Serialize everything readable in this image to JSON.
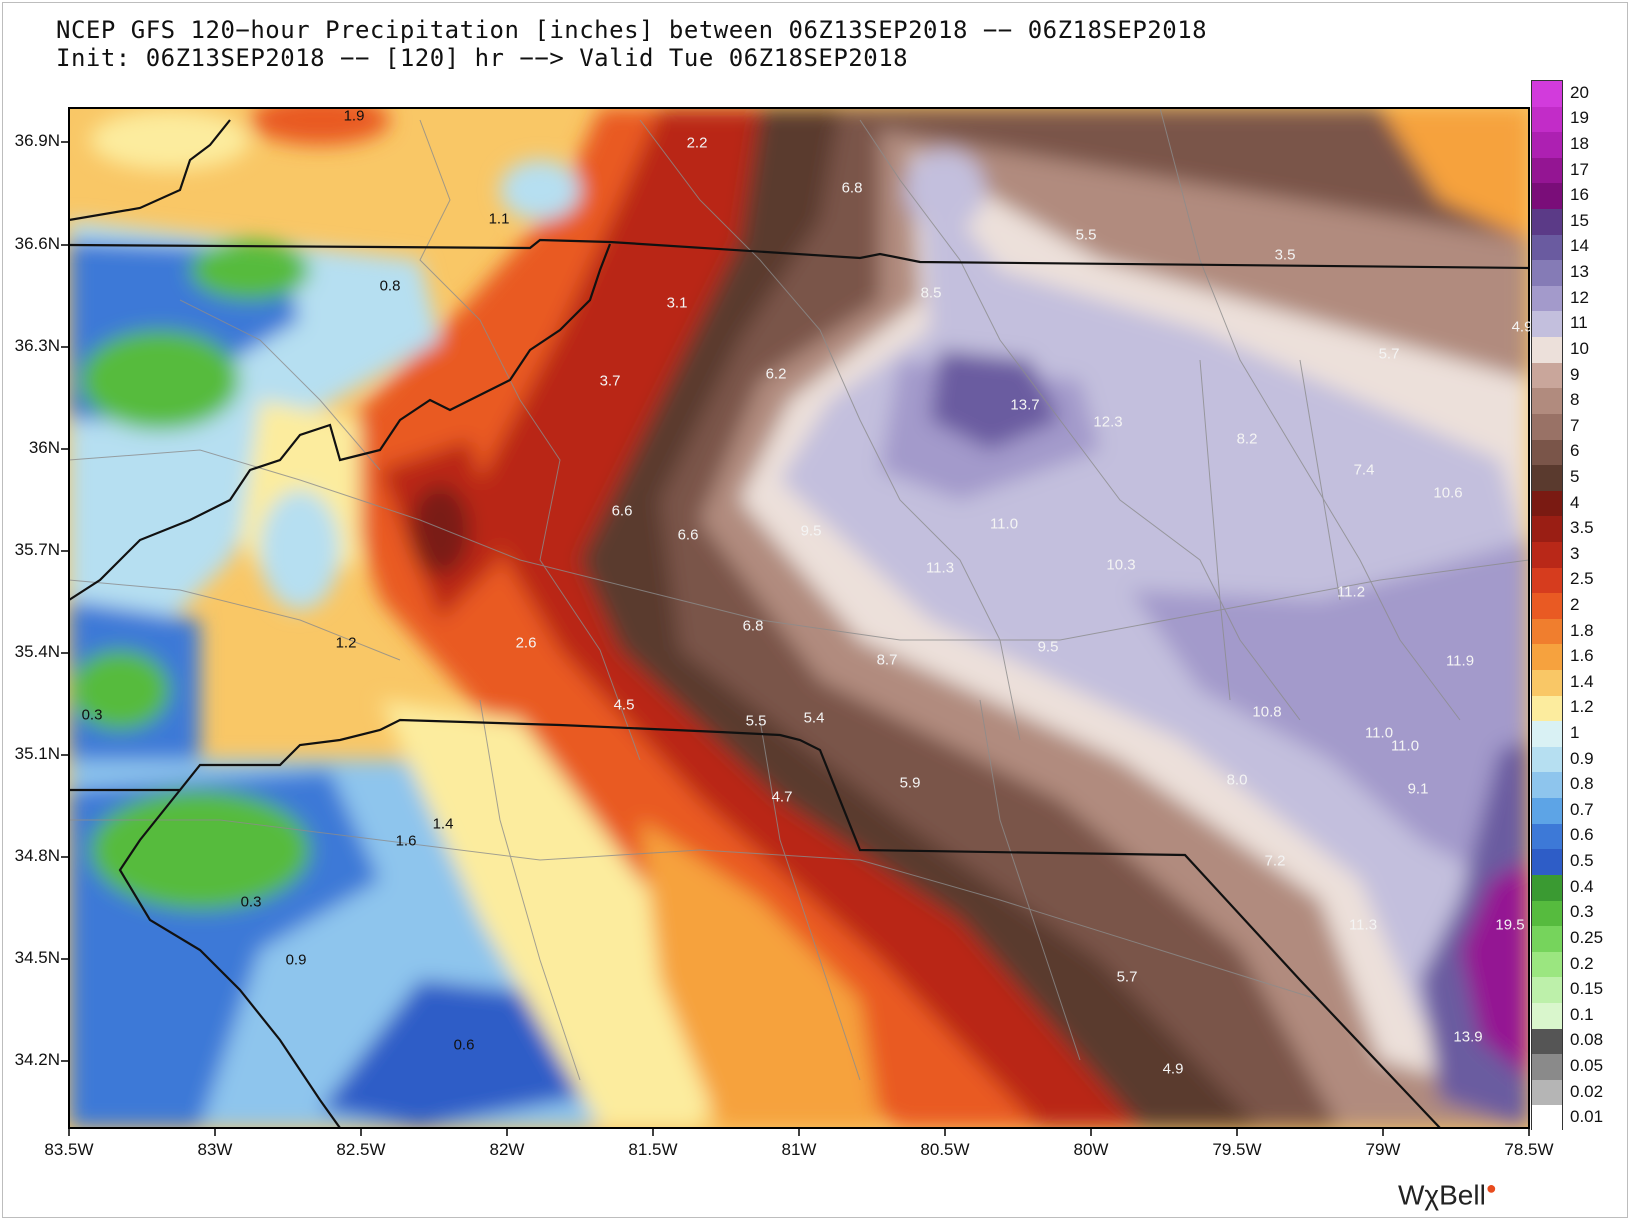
{
  "title_line1": "NCEP GFS 120−hour Precipitation [inches] between 06Z13SEP2018 −− 06Z18SEP2018",
  "title_line2": "Init: 06Z13SEP2018 −− [120] hr −−> Valid Tue 06Z18SEP2018",
  "latitude_labels": [
    "36.9N",
    "36.6N",
    "36.3N",
    "36N",
    "35.7N",
    "35.4N",
    "35.1N",
    "34.8N",
    "34.5N",
    "34.2N"
  ],
  "longitude_labels": [
    "83.5W",
    "83W",
    "82.5W",
    "82W",
    "81.5W",
    "81W",
    "80.5W",
    "80W",
    "79.5W",
    "79W",
    "78.5W"
  ],
  "colorbar": {
    "labels": [
      "20",
      "19",
      "18",
      "17",
      "16",
      "15",
      "14",
      "13",
      "12",
      "11",
      "10",
      "9",
      "8",
      "7",
      "6",
      "5",
      "4",
      "3.5",
      "3",
      "2.5",
      "2",
      "1.8",
      "1.6",
      "1.4",
      "1.2",
      "1",
      "0.9",
      "0.8",
      "0.7",
      "0.6",
      "0.5",
      "0.4",
      "0.3",
      "0.25",
      "0.2",
      "0.15",
      "0.1",
      "0.08",
      "0.05",
      "0.02",
      "0.01"
    ],
    "colors": [
      "#d23bdc",
      "#c22cc8",
      "#ad20b2",
      "#941593",
      "#7a0d79",
      "#5b3a87",
      "#6a5ba0",
      "#857bb6",
      "#a39acb",
      "#c3bfdd",
      "#ece0da",
      "#c9a69b",
      "#b18b7e",
      "#997266",
      "#7a5549",
      "#5a3a2e",
      "#7a1a12",
      "#9a1e14",
      "#b92818",
      "#d63c1e",
      "#e95a23",
      "#f07e2e",
      "#f6a23e",
      "#f9c766",
      "#fcec9e",
      "#d9f1f4",
      "#b6dff1",
      "#8ec5ed",
      "#5da4e6",
      "#3d79d7",
      "#2e5dc7",
      "#3a9a32",
      "#56bb3e",
      "#76d45c",
      "#9be680",
      "#bdf0aa",
      "#d9f6cc",
      "#555555",
      "#8a8a8a",
      "#b5b5b5",
      "#ffffff"
    ]
  },
  "point_values": [
    {
      "label": "1.9",
      "tone": "dark"
    },
    {
      "label": "2.2",
      "tone": "light"
    },
    {
      "label": "6.8",
      "tone": "light"
    },
    {
      "label": "5.5",
      "tone": "light"
    },
    {
      "label": "3.5",
      "tone": "light"
    },
    {
      "label": "4.9",
      "tone": "light"
    },
    {
      "label": "1.1",
      "tone": "dark"
    },
    {
      "label": "0.8",
      "tone": "dark"
    },
    {
      "label": "3.1",
      "tone": "light"
    },
    {
      "label": "8.5",
      "tone": "light"
    },
    {
      "label": "6.2",
      "tone": "light"
    },
    {
      "label": "3.7",
      "tone": "light"
    },
    {
      "label": "13.7",
      "tone": "light"
    },
    {
      "label": "12.3",
      "tone": "light"
    },
    {
      "label": "5.7",
      "tone": "light"
    },
    {
      "label": "8.2",
      "tone": "light"
    },
    {
      "label": "7.4",
      "tone": "light"
    },
    {
      "label": "10.6",
      "tone": "light"
    },
    {
      "label": "6.6",
      "tone": "light"
    },
    {
      "label": "6.6",
      "tone": "light"
    },
    {
      "label": "9.5",
      "tone": "light"
    },
    {
      "label": "11.0",
      "tone": "light"
    },
    {
      "label": "11.3",
      "tone": "light"
    },
    {
      "label": "10.3",
      "tone": "light"
    },
    {
      "label": "11.2",
      "tone": "light"
    },
    {
      "label": "1.2",
      "tone": "dark"
    },
    {
      "label": "2.6",
      "tone": "light"
    },
    {
      "label": "6.8",
      "tone": "light"
    },
    {
      "label": "8.7",
      "tone": "light"
    },
    {
      "label": "9.5",
      "tone": "light"
    },
    {
      "label": "11.9",
      "tone": "light"
    },
    {
      "label": "0.3",
      "tone": "dark"
    },
    {
      "label": "4.5",
      "tone": "light"
    },
    {
      "label": "5.5",
      "tone": "light"
    },
    {
      "label": "5.4",
      "tone": "light"
    },
    {
      "label": "10.8",
      "tone": "light"
    },
    {
      "label": "11.0",
      "tone": "light"
    },
    {
      "label": "11.0",
      "tone": "light"
    },
    {
      "label": "4.7",
      "tone": "light"
    },
    {
      "label": "5.9",
      "tone": "light"
    },
    {
      "label": "8.0",
      "tone": "light"
    },
    {
      "label": "9.1",
      "tone": "light"
    },
    {
      "label": "1.4",
      "tone": "dark"
    },
    {
      "label": "1.6",
      "tone": "dark"
    },
    {
      "label": "7.2",
      "tone": "light"
    },
    {
      "label": "0.3",
      "tone": "dark"
    },
    {
      "label": "11.3",
      "tone": "light"
    },
    {
      "label": "19.5",
      "tone": "light"
    },
    {
      "label": "0.9",
      "tone": "dark"
    },
    {
      "label": "5.7",
      "tone": "light"
    },
    {
      "label": "0.6",
      "tone": "dark"
    },
    {
      "label": "4.9",
      "tone": "light"
    },
    {
      "label": "13.9",
      "tone": "light"
    }
  ],
  "logo": {
    "text": "WχBell",
    "mark": "●"
  }
}
